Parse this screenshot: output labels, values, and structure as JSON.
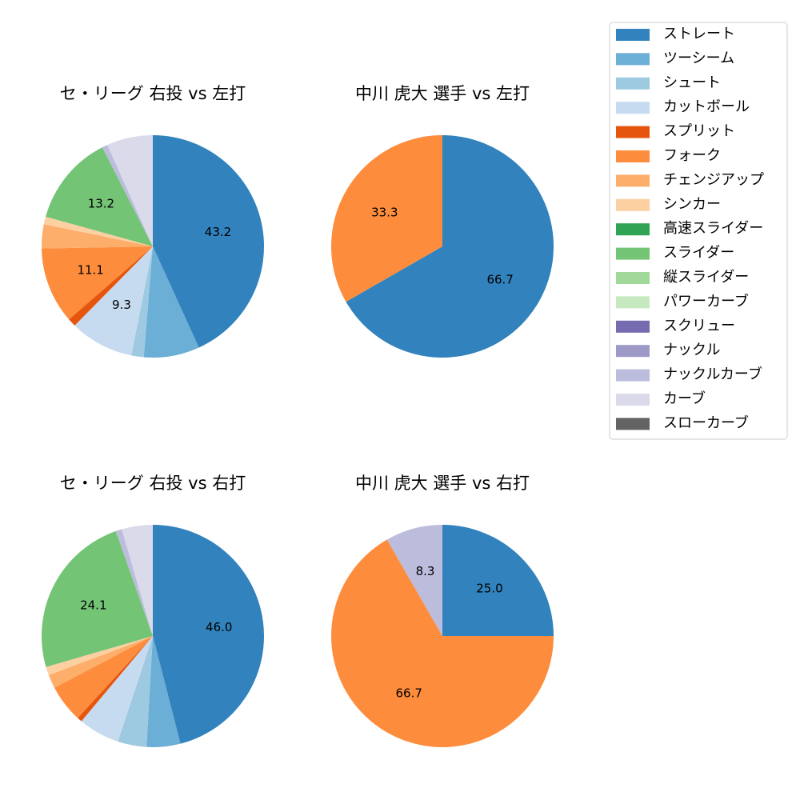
{
  "legend": {
    "categories": [
      "ストレート",
      "ツーシーム",
      "シュート",
      "カットボール",
      "スプリット",
      "フォーク",
      "チェンジアップ",
      "シンカー",
      "高速スライダー",
      "スライダー",
      "縦スライダー",
      "パワーカーブ",
      "スクリュー",
      "ナックル",
      "ナックルカーブ",
      "カーブ",
      "スローカーブ"
    ],
    "colors": [
      "#3182bd",
      "#6baed6",
      "#9ecae1",
      "#c6dbef",
      "#e6550d",
      "#fd8d3c",
      "#fdae6b",
      "#fdd0a2",
      "#31a354",
      "#74c476",
      "#a1d99b",
      "#c7e9c0",
      "#756bb1",
      "#9e9ac8",
      "#bcbddc",
      "#dadaeb",
      "#636363"
    ]
  },
  "chart_data": [
    {
      "type": "pie",
      "title": "セ・リーグ 右投 vs 左打",
      "values": [
        43.2,
        8.1,
        1.8,
        9.3,
        1.2,
        11.1,
        3.5,
        1.1,
        0,
        13.2,
        0,
        0,
        0,
        0,
        0.8,
        6.7,
        0
      ],
      "value_labels": [
        "43.2",
        null,
        null,
        "9.3",
        null,
        "11.1",
        null,
        null,
        null,
        "13.2",
        null,
        null,
        null,
        null,
        null,
        null,
        null
      ]
    },
    {
      "type": "pie",
      "title": "中川 虎大 選手 vs 左打",
      "values": [
        66.7,
        0,
        0,
        0,
        0,
        33.3,
        0,
        0,
        0,
        0,
        0,
        0,
        0,
        0,
        0,
        0,
        0
      ],
      "value_labels": [
        "66.7",
        null,
        null,
        null,
        null,
        "33.3",
        null,
        null,
        null,
        null,
        null,
        null,
        null,
        null,
        null,
        null,
        null
      ]
    },
    {
      "type": "pie",
      "title": "セ・リーグ 右投 vs 右打",
      "values": [
        46.0,
        4.9,
        4.2,
        6.0,
        0.7,
        5.5,
        2.0,
        1.2,
        0,
        24.1,
        0,
        0,
        0,
        0,
        0.9,
        4.5,
        0
      ],
      "value_labels": [
        "46.0",
        null,
        null,
        null,
        null,
        null,
        null,
        null,
        null,
        "24.1",
        null,
        null,
        null,
        null,
        null,
        null,
        null
      ]
    },
    {
      "type": "pie",
      "title": "中川 虎大 選手 vs 右打",
      "values": [
        25.0,
        0,
        0,
        0,
        0,
        66.7,
        0,
        0,
        0,
        0,
        0,
        0,
        0,
        0,
        8.3,
        0,
        0
      ],
      "value_labels": [
        "25.0",
        null,
        null,
        null,
        null,
        "66.7",
        null,
        null,
        null,
        null,
        null,
        null,
        null,
        null,
        "8.3",
        null,
        null
      ]
    }
  ]
}
